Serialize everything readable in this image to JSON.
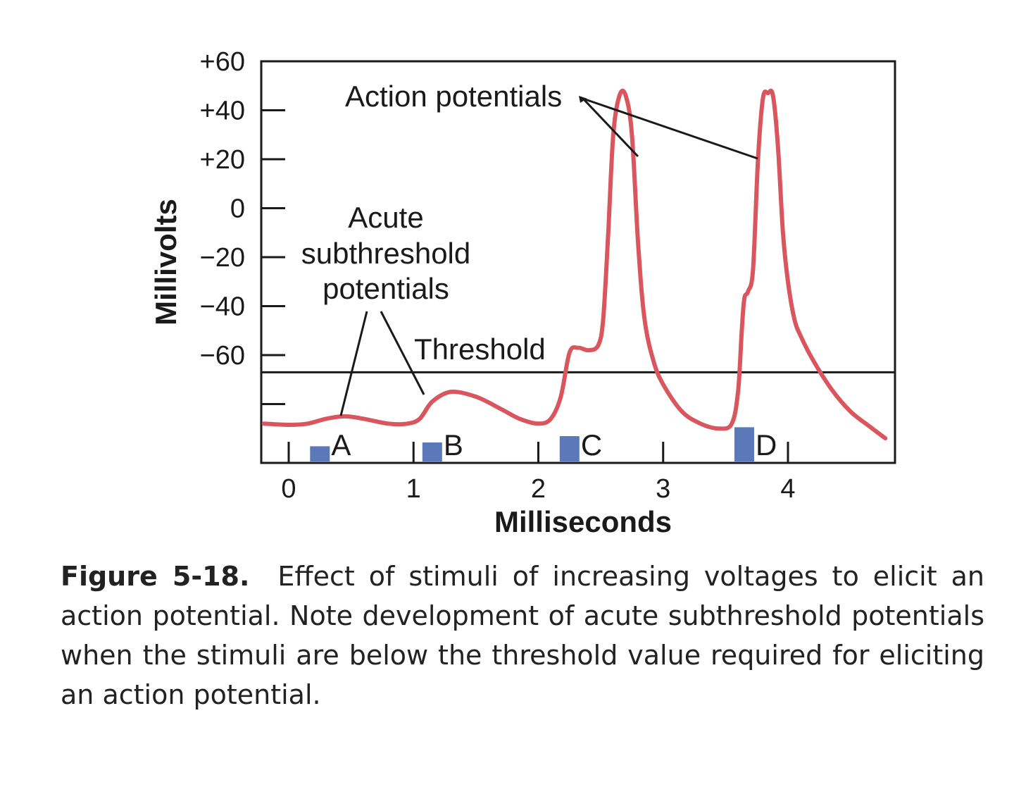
{
  "figure": {
    "caption_label": "Figure 5-18.",
    "caption_text": "Effect of stimuli of increasing voltages to elicit an action potential. Note development of acute subthreshold potentials when the stimuli are below the threshold value required for eliciting an action potential."
  },
  "chart_data": {
    "type": "line",
    "title": "",
    "xlabel": "Milliseconds",
    "ylabel": "Millivolts",
    "xlim": [
      -0.2,
      4.9
    ],
    "ylim": [
      -105,
      60
    ],
    "x_ticks": [
      0,
      1,
      2,
      3,
      4
    ],
    "x_tick_labels": [
      "0",
      "1",
      "2",
      "3",
      "4"
    ],
    "y_ticks": [
      60,
      40,
      20,
      0,
      -20,
      -40,
      -60,
      -80
    ],
    "y_tick_labels": [
      "+60",
      "+40",
      "+20",
      "0",
      "−20",
      "−40",
      "−60",
      ""
    ],
    "grid": false,
    "threshold": {
      "label": "Threshold",
      "value": -67
    },
    "series": [
      {
        "color": "#d9565f",
        "x": [
          -0.2,
          0.0,
          0.15,
          0.3,
          0.45,
          0.6,
          0.8,
          0.95,
          1.05,
          1.15,
          1.3,
          1.5,
          1.7,
          1.85,
          2.0,
          2.1,
          2.18,
          2.25,
          2.32,
          2.4,
          2.48,
          2.52,
          2.56,
          2.6,
          2.65,
          2.7,
          2.75,
          2.8,
          2.85,
          2.92,
          3.0,
          3.15,
          3.3,
          3.45,
          3.55,
          3.6,
          3.63,
          3.65,
          3.68,
          3.72,
          3.76,
          3.8,
          3.84,
          3.88,
          3.92,
          3.96,
          4.0,
          4.05,
          4.1,
          4.2,
          4.35,
          4.5,
          4.65,
          4.78
        ],
        "y": [
          -88,
          -88.5,
          -88,
          -86,
          -85,
          -86,
          -88,
          -88,
          -86,
          -79,
          -75,
          -77,
          -82,
          -86,
          -88,
          -86,
          -77,
          -59,
          -57,
          -58,
          -56,
          -45,
          -10,
          30,
          46,
          46,
          30,
          -15,
          -45,
          -62,
          -72,
          -83,
          -88,
          -90,
          -88,
          -75,
          -50,
          -37,
          -34,
          -25,
          20,
          45,
          47,
          46,
          25,
          -10,
          -30,
          -45,
          -52,
          -62,
          -74,
          -83,
          -89,
          -94
        ]
      }
    ],
    "stimuli": [
      {
        "label": "A",
        "x": 0.25,
        "value": 6,
        "color": "#5b79b8"
      },
      {
        "label": "B",
        "x": 1.15,
        "value": 7.5,
        "color": "#5b79b8"
      },
      {
        "label": "C",
        "x": 2.25,
        "value": 10,
        "color": "#5b79b8"
      },
      {
        "label": "D",
        "x": 3.65,
        "value": 13.5,
        "color": "#5b79b8"
      }
    ],
    "annotations": [
      {
        "id": "action",
        "text": "Action potentials"
      },
      {
        "id": "acute",
        "lines": [
          "Acute",
          "subthreshold",
          "potentials"
        ]
      }
    ]
  }
}
